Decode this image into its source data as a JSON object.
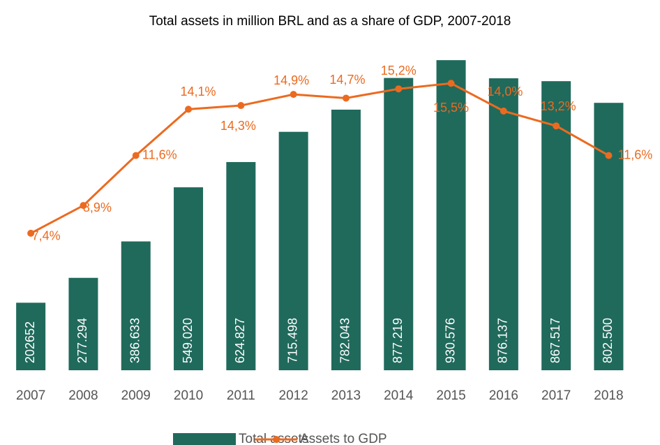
{
  "chart_data": {
    "type": "bar-line",
    "title": "Total assets in million BRL and as a share of GDP, 2007-2018",
    "categories": [
      "2007",
      "2008",
      "2009",
      "2010",
      "2011",
      "2012",
      "2013",
      "2014",
      "2015",
      "2016",
      "2017",
      "2018"
    ],
    "ylim": [
      0,
      1000000
    ],
    "y2lim": [
      0,
      18
    ],
    "series": [
      {
        "name": "Total assets",
        "type": "bar",
        "color": "#206a5c",
        "values": [
          202652,
          277294,
          386633,
          549020,
          624827,
          715498,
          782043,
          877219,
          930576,
          876137,
          867517,
          802500
        ],
        "value_labels": [
          "202652",
          "277.294",
          "386.633",
          "549.020",
          "624.827",
          "715.498",
          "782.043",
          "877.219",
          "930.576",
          "876.137",
          "867.517",
          "802.500"
        ]
      },
      {
        "name": "Assets to GDP",
        "type": "line",
        "axis": "y2",
        "color": "#ec6a1f",
        "values": [
          7.4,
          8.9,
          11.6,
          14.1,
          14.3,
          14.9,
          14.7,
          15.2,
          15.5,
          14.0,
          13.2,
          11.6
        ],
        "value_labels": [
          "7,4%",
          "8,9%",
          "11,6%",
          "14,1%",
          "14,3%",
          "14,9%",
          "14,7%",
          "15,2%",
          "15,5%",
          "14,0%",
          "13,2%",
          "11,6%"
        ]
      }
    ]
  }
}
